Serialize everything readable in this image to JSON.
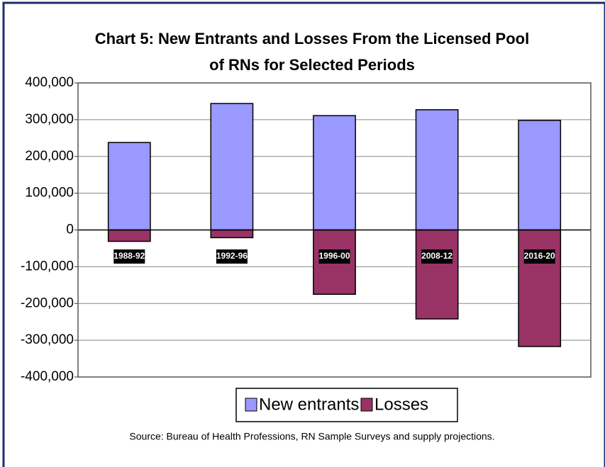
{
  "chart_data": {
    "type": "bar",
    "title": [
      "Chart 5:  New Entrants and Losses From the Licensed Pool",
      "of RNs for Selected Periods"
    ],
    "categories": [
      "1988-92",
      "1992-96",
      "1996-00",
      "2008-12",
      "2016-20"
    ],
    "series": [
      {
        "name": "New entrants",
        "color": "#9999ff",
        "values": [
          238000,
          344000,
          311000,
          327000,
          298000
        ]
      },
      {
        "name": "Losses",
        "color": "#993366",
        "values": [
          -31000,
          -21000,
          -175000,
          -242000,
          -317000
        ]
      }
    ],
    "ylim": [
      -400000,
      400000
    ],
    "yticks": [
      {
        "value": -400000,
        "label": "-400,000"
      },
      {
        "value": -300000,
        "label": "-300,000"
      },
      {
        "value": -200000,
        "label": "-200,000"
      },
      {
        "value": -100000,
        "label": "-100,000"
      },
      0,
      {
        "value": 100000,
        "label": "100,000"
      },
      {
        "value": 200000,
        "label": "200,000"
      },
      {
        "value": 300000,
        "label": "300,000"
      },
      {
        "value": 400000,
        "label": "400,000"
      }
    ],
    "grid": true,
    "source": "Source:  Bureau of Health Professions, RN Sample Surveys and supply projections."
  }
}
